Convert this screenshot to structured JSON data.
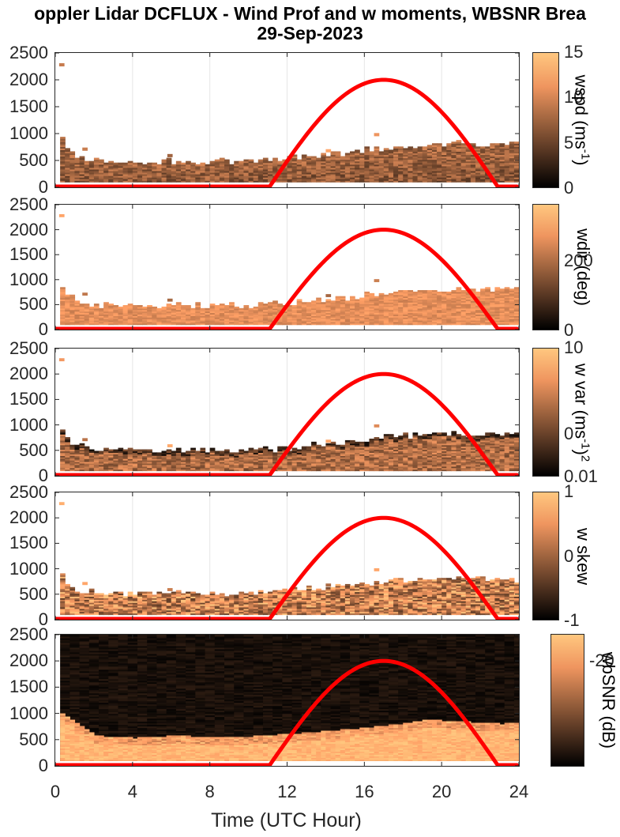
{
  "figure": {
    "title_line1": "oppler Lidar DCFLUX - Wind Prof and w moments, WBSNR Brea",
    "title_line2": "29-Sep-2023",
    "xlabel": "Time (UTC Hour)",
    "x_ticks": [
      "0",
      "4",
      "8",
      "12",
      "16",
      "20",
      "24"
    ],
    "y_ticks": [
      "0",
      "500",
      "1000",
      "1500",
      "2000",
      "2500"
    ],
    "colormap": "copper",
    "colors": {
      "sun_curve": "#ff0000",
      "axis": "#262626",
      "grid": "#e6e6e6"
    }
  },
  "chart_data": [
    {
      "type": "heatmap",
      "variable": "wspd",
      "colorbar_label": "wspd (ms",
      "colorbar_label_sup": "-1",
      "colorbar_label_end": ")",
      "colorbar_ticks": [
        "15",
        "10",
        "5",
        "0"
      ],
      "clim": [
        0,
        15
      ],
      "xlim": [
        0,
        24
      ],
      "ylim": [
        0,
        2500
      ],
      "boundary_layer_top_m": [
        [
          0,
          1050
        ],
        [
          0.5,
          700
        ],
        [
          1,
          550
        ],
        [
          2,
          480
        ],
        [
          3,
          470
        ],
        [
          4,
          470
        ],
        [
          6,
          480
        ],
        [
          8,
          470
        ],
        [
          10,
          480
        ],
        [
          11,
          500
        ],
        [
          12,
          520
        ],
        [
          13,
          560
        ],
        [
          14,
          590
        ],
        [
          15,
          620
        ],
        [
          16,
          680
        ],
        [
          17,
          700
        ],
        [
          18,
          740
        ],
        [
          19,
          760
        ],
        [
          20,
          780
        ],
        [
          21,
          800
        ],
        [
          22,
          780
        ],
        [
          23,
          790
        ],
        [
          24,
          800
        ]
      ],
      "value_range": [
        3,
        9
      ],
      "sun_curve": {
        "x0": 11.1,
        "x1": 22.9,
        "peak_x": 17,
        "peak_y": 2000
      }
    },
    {
      "type": "heatmap",
      "variable": "wdir",
      "colorbar_label": "wdir (deg)",
      "colorbar_ticks": [
        "200",
        "0"
      ],
      "clim": [
        0,
        360
      ],
      "xlim": [
        0,
        24
      ],
      "ylim": [
        0,
        2500
      ],
      "boundary_layer_top_m": [
        [
          0,
          1050
        ],
        [
          0.5,
          700
        ],
        [
          1,
          550
        ],
        [
          2,
          480
        ],
        [
          3,
          470
        ],
        [
          4,
          470
        ],
        [
          6,
          480
        ],
        [
          8,
          470
        ],
        [
          10,
          480
        ],
        [
          11,
          500
        ],
        [
          12,
          520
        ],
        [
          13,
          560
        ],
        [
          14,
          590
        ],
        [
          15,
          620
        ],
        [
          16,
          680
        ],
        [
          17,
          700
        ],
        [
          18,
          740
        ],
        [
          19,
          760
        ],
        [
          20,
          780
        ],
        [
          21,
          800
        ],
        [
          22,
          780
        ],
        [
          23,
          790
        ],
        [
          24,
          800
        ]
      ],
      "value_range": [
        240,
        330
      ],
      "sun_curve": {
        "x0": 11.1,
        "x1": 22.9,
        "peak_x": 17,
        "peak_y": 2000
      }
    },
    {
      "type": "heatmap",
      "variable": "w var",
      "colorbar_label": "w var (ms",
      "colorbar_label_sup": "-1",
      "colorbar_label_end": ")",
      "colorbar_label_sup2": "2",
      "colorbar_ticks": [
        "10",
        "0",
        "0.01"
      ],
      "colorbar_scale": "log",
      "clim": [
        0.01,
        10
      ],
      "xlim": [
        0,
        24
      ],
      "ylim": [
        0,
        2500
      ],
      "boundary_layer_top_m": [
        [
          0,
          1100
        ],
        [
          0.5,
          700
        ],
        [
          1,
          580
        ],
        [
          2,
          500
        ],
        [
          4,
          480
        ],
        [
          6,
          490
        ],
        [
          8,
          480
        ],
        [
          10,
          490
        ],
        [
          11,
          510
        ],
        [
          12,
          540
        ],
        [
          13,
          580
        ],
        [
          14,
          620
        ],
        [
          15,
          660
        ],
        [
          16,
          700
        ],
        [
          17,
          760
        ],
        [
          18,
          780
        ],
        [
          19,
          800
        ],
        [
          20,
          820
        ],
        [
          21,
          790
        ],
        [
          22,
          800
        ],
        [
          23,
          820
        ],
        [
          24,
          810
        ]
      ],
      "value_range": [
        0.05,
        2
      ],
      "sun_curve": {
        "x0": 11.1,
        "x1": 22.9,
        "peak_x": 17,
        "peak_y": 2000
      }
    },
    {
      "type": "heatmap",
      "variable": "w skew",
      "colorbar_label": "w skew",
      "colorbar_ticks": [
        "1",
        "0",
        "-1"
      ],
      "clim": [
        -1,
        1
      ],
      "xlim": [
        0,
        24
      ],
      "ylim": [
        0,
        2500
      ],
      "boundary_layer_top_m": [
        [
          0,
          1100
        ],
        [
          0.5,
          700
        ],
        [
          1,
          560
        ],
        [
          2,
          520
        ],
        [
          4,
          480
        ],
        [
          6,
          500
        ],
        [
          8,
          480
        ],
        [
          10,
          500
        ],
        [
          11,
          520
        ],
        [
          12,
          560
        ],
        [
          13,
          600
        ],
        [
          14,
          640
        ],
        [
          15,
          680
        ],
        [
          16,
          700
        ],
        [
          17,
          740
        ],
        [
          18,
          770
        ],
        [
          19,
          780
        ],
        [
          20,
          800
        ],
        [
          21,
          780
        ],
        [
          22,
          800
        ],
        [
          23,
          760
        ],
        [
          24,
          780
        ]
      ],
      "value_range": [
        -0.6,
        0.9
      ],
      "sun_curve": {
        "x0": 11.1,
        "x1": 22.9,
        "peak_x": 17,
        "peak_y": 2000
      }
    },
    {
      "type": "heatmap",
      "variable": "wbSNR",
      "colorbar_label": "wbSNR (dB)",
      "colorbar_ticks": [
        "-20"
      ],
      "clim": [
        -35,
        -12
      ],
      "xlim": [
        0,
        24
      ],
      "ylim": [
        0,
        2500
      ],
      "boundary_layer_top_m": [
        [
          0,
          1050
        ],
        [
          1,
          800
        ],
        [
          2,
          560
        ],
        [
          3,
          530
        ],
        [
          4,
          520
        ],
        [
          6,
          560
        ],
        [
          8,
          540
        ],
        [
          10,
          550
        ],
        [
          11,
          570
        ],
        [
          12,
          600
        ],
        [
          13,
          620
        ],
        [
          14,
          650
        ],
        [
          15,
          680
        ],
        [
          16,
          720
        ],
        [
          17,
          760
        ],
        [
          18,
          800
        ],
        [
          19,
          860
        ],
        [
          20,
          850
        ],
        [
          21,
          830
        ],
        [
          22,
          810
        ],
        [
          23,
          790
        ],
        [
          24,
          800
        ]
      ],
      "sun_curve": {
        "x0": 11.1,
        "x1": 22.9,
        "peak_x": 17,
        "peak_y": 2000
      }
    }
  ]
}
